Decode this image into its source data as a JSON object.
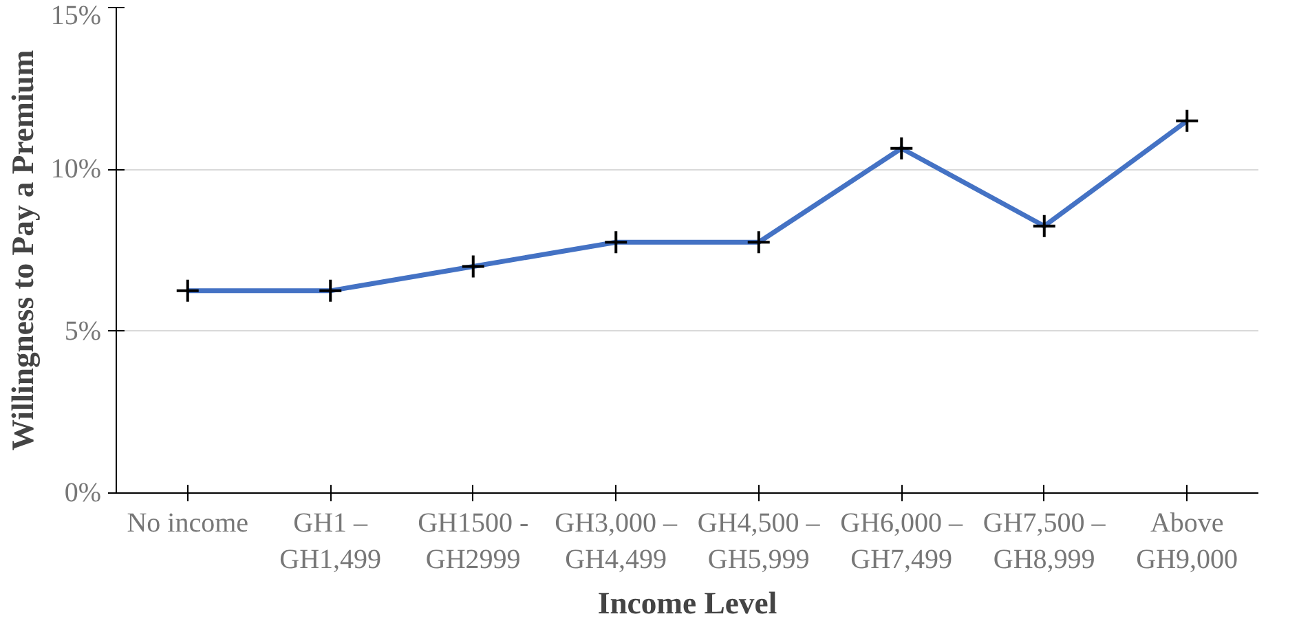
{
  "chart_data": {
    "type": "line",
    "xlabel": "Income Level",
    "ylabel": "Willingness to Pay a Premium",
    "categories": [
      "No income",
      "GH1 –\nGH1,499",
      "GH1500 -\nGH2999",
      "GH3,000 –\nGH4,499",
      "GH4,500 –\nGH5,999",
      "GH6,000 –\nGH7,499",
      "GH7,500 –\nGH8,999",
      "Above\nGH9,000"
    ],
    "series": [
      {
        "color": "#4472c4",
        "values": [
          6.25,
          6.25,
          7.0,
          7.75,
          7.75,
          10.65,
          8.25,
          11.5
        ]
      }
    ],
    "ylim": [
      0,
      15
    ],
    "yticks": [
      {
        "value": 0,
        "label": "0%"
      },
      {
        "value": 5,
        "label": "5%"
      },
      {
        "value": 10,
        "label": "10%"
      },
      {
        "value": 15,
        "label": "15%"
      }
    ],
    "grid": "y",
    "marker": "cross",
    "line_style": "solid"
  }
}
